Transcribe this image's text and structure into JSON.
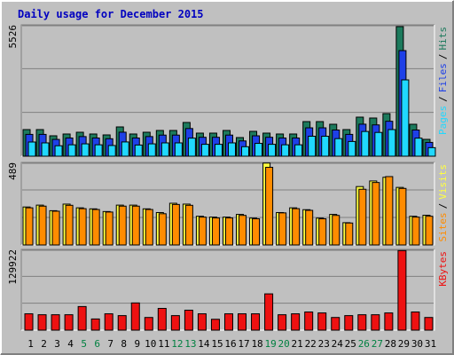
{
  "chart_data": {
    "type": "webalizer",
    "title": "Daily usage for December 2015",
    "categories": [
      "1",
      "2",
      "3",
      "4",
      "5",
      "6",
      "7",
      "8",
      "9",
      "10",
      "11",
      "12",
      "13",
      "14",
      "15",
      "16",
      "17",
      "18",
      "19",
      "20",
      "21",
      "22",
      "23",
      "24",
      "25",
      "26",
      "27",
      "28",
      "29",
      "30",
      "31"
    ],
    "weekends": [
      "5",
      "6",
      "12",
      "13",
      "19",
      "20",
      "26",
      "27"
    ],
    "weekend_color": "#008040",
    "legend_separator": "/",
    "panels": [
      {
        "ylim": [
          0,
          5526
        ],
        "yticks": [
          5526
        ],
        "grid": true,
        "series": [
          {
            "name": "Hits",
            "color": "#1c7a5c",
            "values": [
              1120,
              1120,
              859,
              934,
              1008,
              934,
              896,
              1232,
              934,
              1008,
              1083,
              1083,
              1419,
              971,
              971,
              1083,
              784,
              1046,
              971,
              934,
              934,
              1456,
              1456,
              1344,
              1120,
              1643,
              1606,
              1792,
              5452,
              1344,
              709
            ]
          },
          {
            "name": "Files",
            "color": "#1e40e8",
            "values": [
              918,
              918,
              706,
              766,
              826,
              766,
              735,
              1010,
              766,
              826,
              888,
              888,
              1164,
              796,
              796,
              888,
              643,
              858,
              796,
              766,
              766,
              1194,
              1194,
              1102,
              918,
              1347,
              1317,
              1470,
              4443,
              1102,
              581
            ]
          },
          {
            "name": "Pages",
            "color": "#20d8ff",
            "values": [
              597,
              560,
              440,
              480,
              520,
              480,
              450,
              600,
              470,
              520,
              560,
              560,
              760,
              500,
              500,
              560,
              400,
              540,
              500,
              480,
              480,
              840,
              840,
              740,
              620,
              1040,
              1000,
              1120,
              3211,
              760,
              360
            ]
          }
        ]
      },
      {
        "ylim": [
          0,
          489
        ],
        "yticks": [
          489
        ],
        "grid": true,
        "series": [
          {
            "name": "Visits",
            "color": "#ffff40",
            "values": [
              225,
              236,
              203,
              242,
              220,
              214,
              198,
              236,
              236,
              214,
              192,
              247,
              242,
              170,
              165,
              165,
              181,
              159,
              485,
              192,
              220,
              209,
              159,
              181,
              132,
              346,
              379,
              401,
              341,
              170,
              176
            ]
          },
          {
            "name": "Sites",
            "color": "#ff8c00",
            "values": [
              220,
              230,
              200,
              235,
              215,
              210,
              195,
              230,
              230,
              210,
              185,
              240,
              235,
              165,
              160,
              160,
              175,
              155,
              460,
              190,
              215,
              205,
              155,
              175,
              130,
              330,
              370,
              405,
              335,
              165,
              170
            ]
          }
        ]
      },
      {
        "ylim": [
          0,
          129922
        ],
        "yticks": [
          129922
        ],
        "grid": true,
        "series": [
          {
            "name": "KBytes",
            "color": "#ee1111",
            "values": [
              26300,
              24800,
              24800,
              24800,
              38000,
              18000,
              26300,
              23400,
              43800,
              20400,
              35000,
              23400,
              32100,
              26300,
              17500,
              26300,
              26300,
              26300,
              58400,
              24800,
              26300,
              29200,
              27700,
              20400,
              23400,
              24800,
              24800,
              27700,
              128000,
              29200,
              20400
            ]
          }
        ]
      }
    ]
  }
}
